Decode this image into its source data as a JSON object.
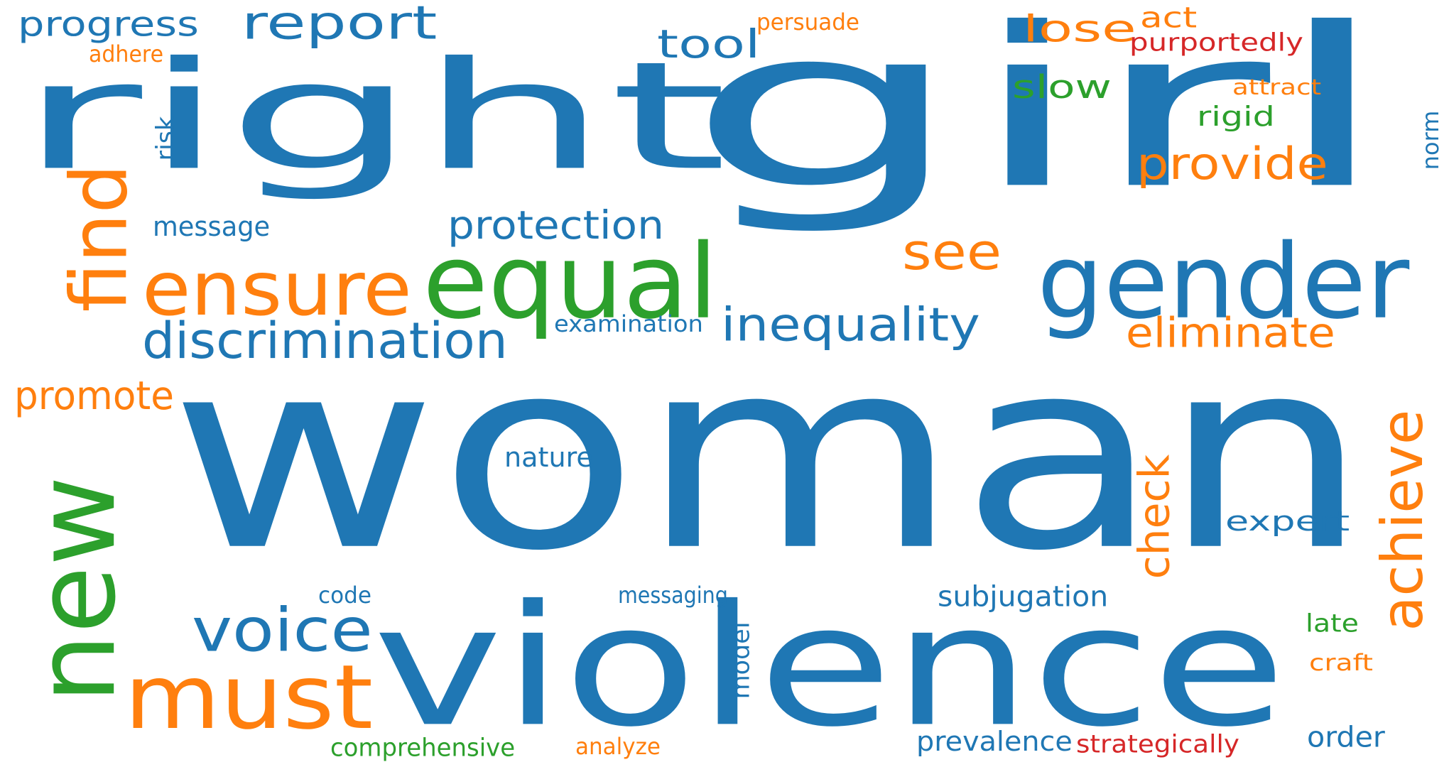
{
  "palette": {
    "blue": "#1f77b4",
    "orange": "#ff7f0e",
    "green": "#2ca02c",
    "red": "#d62728"
  },
  "words": [
    {
      "text": "woman",
      "color": "blue",
      "rotated": false
    },
    {
      "text": "right",
      "color": "blue",
      "rotated": false
    },
    {
      "text": "girl",
      "color": "blue",
      "rotated": false
    },
    {
      "text": "violence",
      "color": "blue",
      "rotated": false
    },
    {
      "text": "new",
      "color": "green",
      "rotated": true
    },
    {
      "text": "gender",
      "color": "blue",
      "rotated": false
    },
    {
      "text": "equal",
      "color": "green",
      "rotated": false
    },
    {
      "text": "find",
      "color": "orange",
      "rotated": true
    },
    {
      "text": "ensure",
      "color": "orange",
      "rotated": false
    },
    {
      "text": "must",
      "color": "orange",
      "rotated": false
    },
    {
      "text": "achieve",
      "color": "orange",
      "rotated": true
    },
    {
      "text": "voice",
      "color": "blue",
      "rotated": false
    },
    {
      "text": "report",
      "color": "blue",
      "rotated": false
    },
    {
      "text": "check",
      "color": "orange",
      "rotated": true
    },
    {
      "text": "discrimination",
      "color": "blue",
      "rotated": false
    },
    {
      "text": "inequality",
      "color": "blue",
      "rotated": false
    },
    {
      "text": "see",
      "color": "orange",
      "rotated": false
    },
    {
      "text": "provide",
      "color": "orange",
      "rotated": false
    },
    {
      "text": "protection",
      "color": "blue",
      "rotated": false
    },
    {
      "text": "eliminate",
      "color": "orange",
      "rotated": false
    },
    {
      "text": "promote",
      "color": "orange",
      "rotated": false
    },
    {
      "text": "progress",
      "color": "blue",
      "rotated": false
    },
    {
      "text": "tool",
      "color": "blue",
      "rotated": false
    },
    {
      "text": "lose",
      "color": "orange",
      "rotated": false
    },
    {
      "text": "risk",
      "color": "blue",
      "rotated": true
    },
    {
      "text": "slow",
      "color": "green",
      "rotated": false
    },
    {
      "text": "model",
      "color": "blue",
      "rotated": true
    },
    {
      "text": "subjugation",
      "color": "blue",
      "rotated": false
    },
    {
      "text": "prevalence",
      "color": "blue",
      "rotated": false
    },
    {
      "text": "comprehensive",
      "color": "green",
      "rotated": false
    },
    {
      "text": "strategically",
      "color": "red",
      "rotated": false
    },
    {
      "text": "message",
      "color": "blue",
      "rotated": false
    },
    {
      "text": "purportedly",
      "color": "red",
      "rotated": false
    },
    {
      "text": "act",
      "color": "orange",
      "rotated": false
    },
    {
      "text": "expert",
      "color": "blue",
      "rotated": false
    },
    {
      "text": "order",
      "color": "blue",
      "rotated": false
    },
    {
      "text": "nature",
      "color": "blue",
      "rotated": false
    },
    {
      "text": "norm",
      "color": "blue",
      "rotated": true
    },
    {
      "text": "rigid",
      "color": "green",
      "rotated": false
    },
    {
      "text": "examination",
      "color": "blue",
      "rotated": false
    },
    {
      "text": "messaging",
      "color": "blue",
      "rotated": false
    },
    {
      "text": "persuade",
      "color": "orange",
      "rotated": false
    },
    {
      "text": "adhere",
      "color": "orange",
      "rotated": false
    },
    {
      "text": "attract",
      "color": "orange",
      "rotated": false
    },
    {
      "text": "code",
      "color": "blue",
      "rotated": false
    },
    {
      "text": "late",
      "color": "green",
      "rotated": false
    },
    {
      "text": "craft",
      "color": "orange",
      "rotated": false
    },
    {
      "text": "analyze",
      "color": "orange",
      "rotated": false
    }
  ]
}
